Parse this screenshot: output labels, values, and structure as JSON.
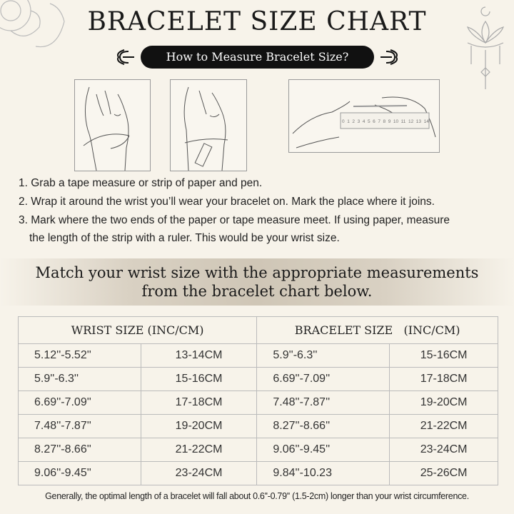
{
  "title": "BRACELET SIZE CHART",
  "subtitle_pill": "How to Measure Bracelet Size?",
  "illustrations": {
    "ruler_numbers": [
      "0",
      "1",
      "2",
      "3",
      "4",
      "5",
      "6",
      "7",
      "8",
      "9",
      "10",
      "11",
      "12",
      "13",
      "14"
    ]
  },
  "steps": [
    "1. Grab a tape measure or strip of paper and pen.",
    "2. Wrap it around the wrist you’ll wear your bracelet on. Mark the place where it joins.",
    "3. Mark where the two ends of the paper or tape measure meet. If using paper, measure",
    "the length of the strip with a ruler. This would be your wrist size."
  ],
  "banner": {
    "line1": "Match your wrist size with the appropriate measurements",
    "line2": "from the bracelet chart below."
  },
  "table": {
    "headers": [
      "WRIST SIZE (INC/CM)",
      "BRACELET SIZE   (INC/CM)"
    ],
    "rows": [
      [
        "5.12''-5.52''",
        "13-14CM",
        "5.9''-6.3''",
        "15-16CM"
      ],
      [
        "5.9''-6.3''",
        "15-16CM",
        "6.69''-7.09''",
        "17-18CM"
      ],
      [
        "6.69''-7.09''",
        "17-18CM",
        "7.48''-7.87''",
        "19-20CM"
      ],
      [
        "7.48''-7.87''",
        "19-20CM",
        "8.27''-8.66''",
        "21-22CM"
      ],
      [
        "8.27''-8.66''",
        "21-22CM",
        "9.06''-9.45''",
        "23-24CM"
      ],
      [
        "9.06''-9.45''",
        "23-24CM",
        "9.84''-10.23",
        "25-26CM"
      ]
    ]
  },
  "footer": "Generally, the optimal length of a bracelet will fall about 0.6''-0.79'' (1.5-2cm) longer than your wrist circumference."
}
